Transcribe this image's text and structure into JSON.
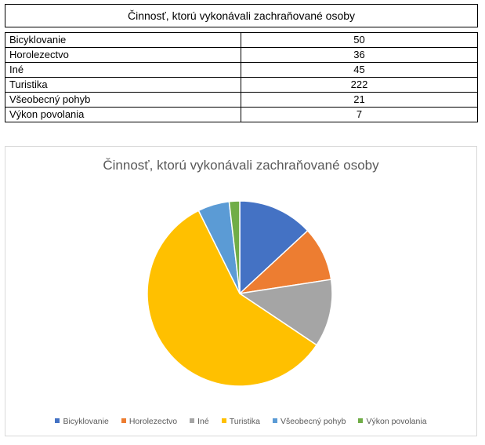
{
  "table": {
    "title": "Činnosť, ktorú vykonávali zachraňované osoby",
    "rows": [
      {
        "label": "Bicyklovanie",
        "value": "50"
      },
      {
        "label": "Horolezectvo",
        "value": "36"
      },
      {
        "label": "Iné",
        "value": "45"
      },
      {
        "label": "Turistika",
        "value": "222"
      },
      {
        "label": "Všeobecný pohyb",
        "value": "21"
      },
      {
        "label": "Výkon povolania",
        "value": "7"
      }
    ]
  },
  "chart_data": {
    "type": "pie",
    "title": "Činnosť, ktorú vykonávali zachraňované osoby",
    "categories": [
      "Bicyklovanie",
      "Horolezectvo",
      "Iné",
      "Turistika",
      "Všeobecný pohyb",
      "Výkon povolania"
    ],
    "values": [
      50,
      36,
      45,
      222,
      21,
      7
    ],
    "colors": [
      "#4472C4",
      "#ED7D31",
      "#A5A5A5",
      "#FFC000",
      "#5B9BD5",
      "#70AD47"
    ],
    "legend": "bottom",
    "start_angle": "12 o'clock",
    "direction": "clockwise"
  }
}
